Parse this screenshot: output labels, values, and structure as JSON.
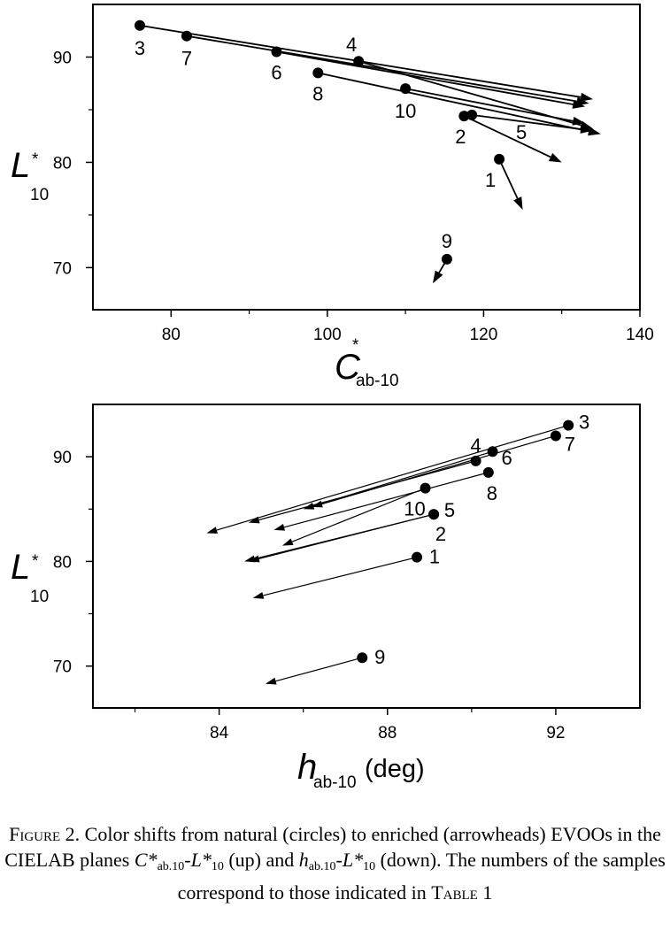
{
  "chart_data": [
    {
      "type": "scatter",
      "xlabel": {
        "main": "C",
        "sup": "*",
        "sub": "ab-10"
      },
      "ylabel": {
        "main": "L",
        "sup": "*",
        "sub": "10"
      },
      "xlim": [
        70,
        140
      ],
      "ylim": [
        66,
        95
      ],
      "xticks": [
        80,
        100,
        120,
        140
      ],
      "yticks": [
        70,
        80,
        90
      ],
      "points": [
        {
          "label": "1",
          "x": 122.0,
          "y": 80.3,
          "to": [
            125.0,
            75.5
          ]
        },
        {
          "label": "2",
          "x": 117.5,
          "y": 84.4,
          "to": [
            130.0,
            80.0
          ]
        },
        {
          "label": "3",
          "x": 76.0,
          "y": 93.0,
          "to": [
            134.0,
            86.0
          ]
        },
        {
          "label": "4",
          "x": 104.0,
          "y": 89.6,
          "to": [
            134.0,
            83.2
          ]
        },
        {
          "label": "5",
          "x": 118.5,
          "y": 84.5,
          "to": [
            134.0,
            83.0
          ]
        },
        {
          "label": "6",
          "x": 93.5,
          "y": 90.5,
          "to": [
            133.0,
            85.3
          ]
        },
        {
          "label": "7",
          "x": 82.0,
          "y": 92.0,
          "to": [
            133.5,
            85.6
          ]
        },
        {
          "label": "8",
          "x": 98.8,
          "y": 88.5,
          "to": [
            135.0,
            82.7
          ]
        },
        {
          "label": "9",
          "x": 115.3,
          "y": 70.8,
          "to": [
            113.5,
            68.5
          ]
        },
        {
          "label": "10",
          "x": 110.0,
          "y": 87.0,
          "to": [
            133.0,
            83.7
          ]
        }
      ]
    },
    {
      "type": "scatter",
      "xlabel": {
        "main": "h",
        "sub": "ab-10",
        "unit": "(deg)"
      },
      "ylabel": {
        "main": "L",
        "sup": "*",
        "sub": "10"
      },
      "xlim": [
        81,
        94
      ],
      "ylim": [
        66,
        95
      ],
      "xticks": [
        84,
        88,
        92
      ],
      "yticks": [
        70,
        80,
        90
      ],
      "points": [
        {
          "label": "1",
          "x": 88.7,
          "y": 80.4,
          "to": [
            84.8,
            76.5
          ]
        },
        {
          "label": "2",
          "x": 89.1,
          "y": 84.5,
          "to": [
            84.6,
            80.0
          ]
        },
        {
          "label": "3",
          "x": 92.3,
          "y": 93.0,
          "to": [
            83.7,
            82.7
          ]
        },
        {
          "label": "4",
          "x": 90.1,
          "y": 89.6,
          "to": [
            84.7,
            83.7
          ]
        },
        {
          "label": "5",
          "x": 89.1,
          "y": 84.5,
          "to": [
            84.7,
            80.0
          ]
        },
        {
          "label": "6",
          "x": 90.5,
          "y": 90.5,
          "to": [
            86.0,
            85.0
          ]
        },
        {
          "label": "7",
          "x": 92.0,
          "y": 92.0,
          "to": [
            86.2,
            85.2
          ]
        },
        {
          "label": "8",
          "x": 90.4,
          "y": 88.5,
          "to": [
            85.3,
            83.0
          ]
        },
        {
          "label": "9",
          "x": 87.4,
          "y": 70.8,
          "to": [
            85.1,
            68.3
          ]
        },
        {
          "label": "10",
          "x": 88.9,
          "y": 87.0,
          "to": [
            85.5,
            81.5
          ]
        }
      ]
    }
  ],
  "caption": {
    "figure_label": "Figure 2.",
    "text_1": " Color shifts from natural (circles) to enriched (arrowheads) EVOOs in the CIELAB planes ",
    "c_star": "C*",
    "sub_ab": "ab.10",
    "dash": "-",
    "l_star": "L*",
    "sub_10": "10",
    "text_up": " (up) and ",
    "h": "h",
    "text_down": " (down). The numbers of the samples correspond to those indicated in ",
    "table_ref": "Table 1"
  }
}
